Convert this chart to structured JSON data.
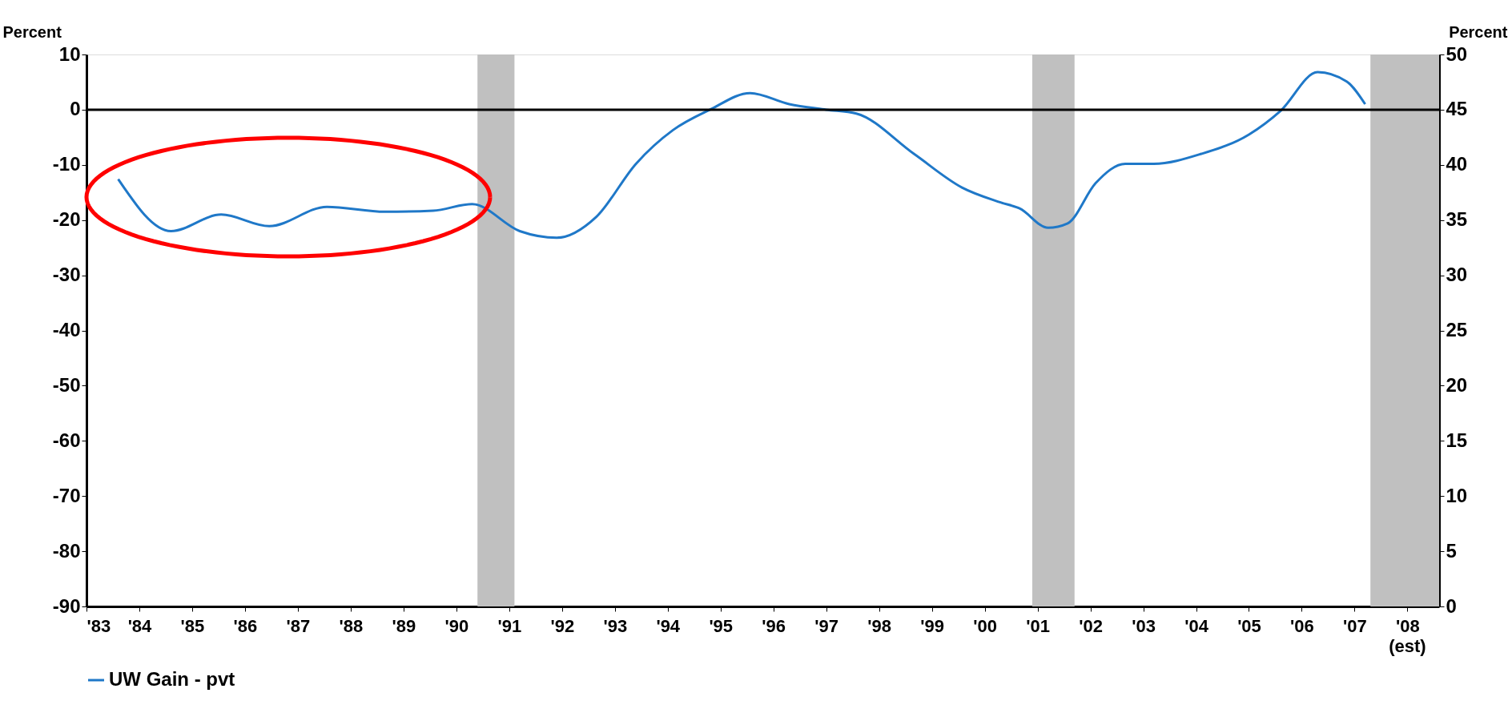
{
  "chart_data": {
    "type": "line",
    "ylabel": "Percent",
    "y2label": "Percent",
    "x": [
      1983.6,
      1984.6,
      1985.55,
      1986.46,
      1987.55,
      1988.65,
      1989.56,
      1990.3,
      1991.2,
      1991.9,
      1992.65,
      1993.4,
      1994.1,
      1994.8,
      1995.56,
      1996.3,
      1997.0,
      1997.57,
      1998.66,
      1999.57,
      2000.3,
      2000.66,
      2001.2,
      2001.57,
      2002.1,
      2002.66,
      2003.2,
      2004.1,
      2005.0,
      2005.6,
      2006.3,
      2006.85,
      2007.2
    ],
    "series": [
      {
        "name": "UW Gain - pvt",
        "color": "#1f78c8",
        "values": [
          -12.6,
          -22,
          -19,
          -21.1,
          -17.6,
          -18.5,
          -18.3,
          -17.1,
          -22,
          -23.2,
          -19.4,
          -9.8,
          -3.7,
          0,
          3,
          1,
          0,
          -0.7,
          -8,
          -14.1,
          -16.8,
          -17.9,
          -21.4,
          -20.6,
          -13.3,
          -9.8,
          -9.8,
          -8,
          -4.5,
          -0.2,
          6.8,
          5.1,
          1
        ]
      }
    ],
    "xlim": [
      1983,
      2008.6
    ],
    "xticks": [
      {
        "value": 1983,
        "label": "'83"
      },
      {
        "value": 1984,
        "label": "'84"
      },
      {
        "value": 1985,
        "label": "'85"
      },
      {
        "value": 1986,
        "label": "'86"
      },
      {
        "value": 1987,
        "label": "'87"
      },
      {
        "value": 1988,
        "label": "'88"
      },
      {
        "value": 1989,
        "label": "'89"
      },
      {
        "value": 1990,
        "label": "'90"
      },
      {
        "value": 1991,
        "label": "'91"
      },
      {
        "value": 1992,
        "label": "'92"
      },
      {
        "value": 1993,
        "label": "'93"
      },
      {
        "value": 1994,
        "label": "'94"
      },
      {
        "value": 1995,
        "label": "'95"
      },
      {
        "value": 1996,
        "label": "'96"
      },
      {
        "value": 1997,
        "label": "'97"
      },
      {
        "value": 1998,
        "label": "'98"
      },
      {
        "value": 1999,
        "label": "'99"
      },
      {
        "value": 2000,
        "label": "'00"
      },
      {
        "value": 2001,
        "label": "'01"
      },
      {
        "value": 2002,
        "label": "'02"
      },
      {
        "value": 2003,
        "label": "'03"
      },
      {
        "value": 2004,
        "label": "'04"
      },
      {
        "value": 2005,
        "label": "'05"
      },
      {
        "value": 2006,
        "label": "'06"
      },
      {
        "value": 2007,
        "label": "'07"
      },
      {
        "value": 2008,
        "label": "'08"
      }
    ],
    "annotations": [
      "(est)"
    ],
    "ylim": [
      -90,
      10
    ],
    "yticks": [
      -90,
      -80,
      -70,
      -60,
      -50,
      -40,
      -30,
      -20,
      -10,
      0,
      10
    ],
    "y2lim": [
      0,
      50
    ],
    "y2ticks": [
      0,
      5,
      10,
      15,
      20,
      25,
      30,
      35,
      40,
      45,
      50
    ],
    "ref_lines": [
      {
        "axis": "y",
        "value": 0,
        "color": "#000000"
      }
    ],
    "bands": [
      {
        "axis": "x",
        "from": 1990.4,
        "to": 1991.1,
        "color": "#c0c0c0"
      },
      {
        "axis": "x",
        "from": 2000.9,
        "to": 2001.7,
        "color": "#c0c0c0"
      },
      {
        "axis": "x",
        "from": 2007.3,
        "to": 2008.6,
        "color": "#c0c0c0"
      }
    ],
    "grid": false,
    "legend": "bottom",
    "marker": "none",
    "line_style": "solid"
  }
}
